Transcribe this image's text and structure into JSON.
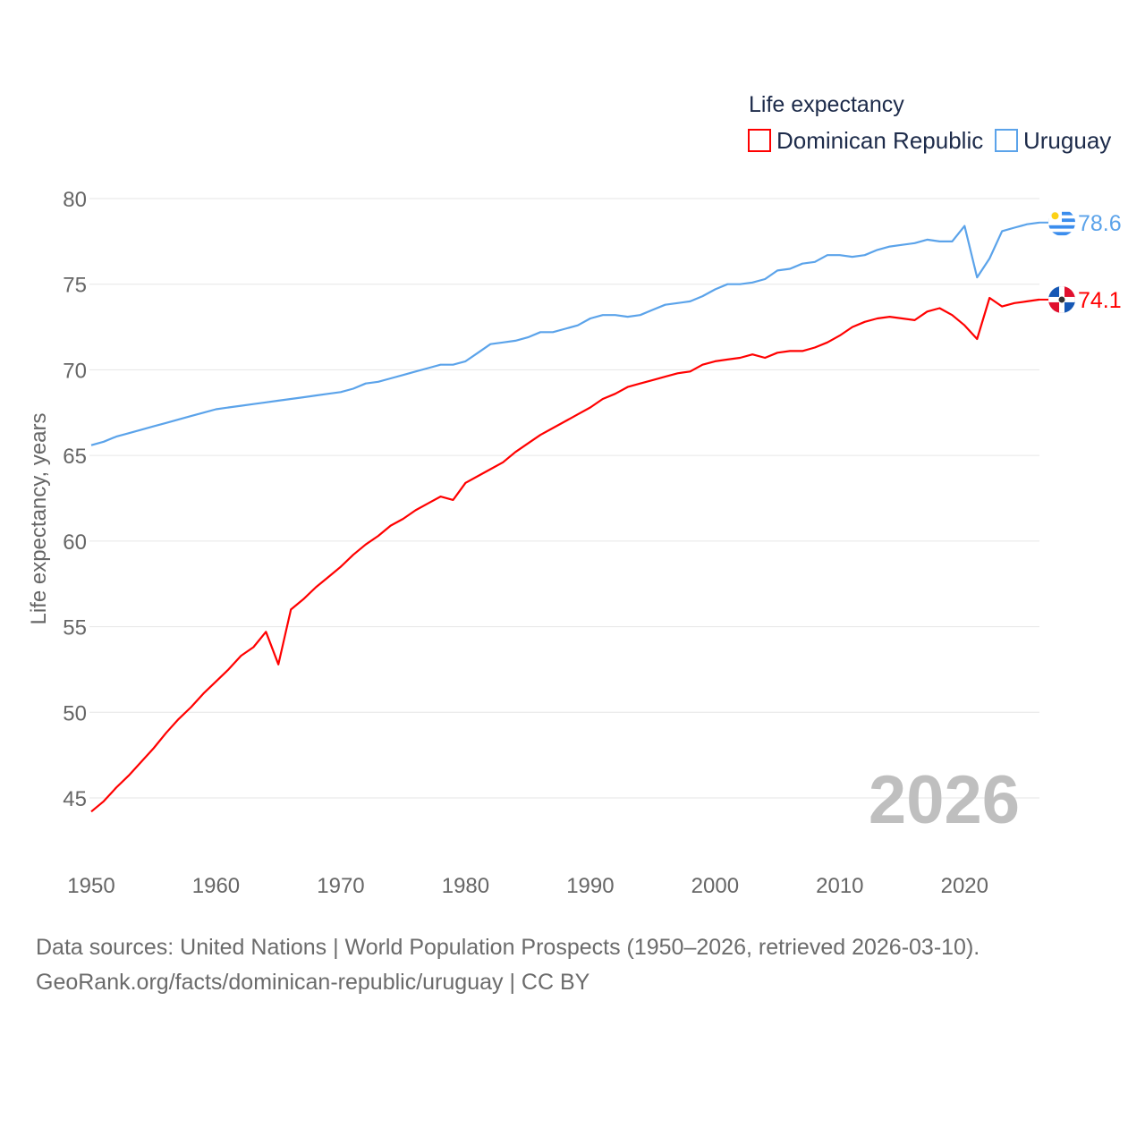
{
  "chart_data": {
    "type": "line",
    "title": "Life expectancy",
    "xlabel": "",
    "ylabel": "Life expectancy, years",
    "xlim": [
      1950,
      2026
    ],
    "ylim": [
      45,
      80
    ],
    "x_ticks": [
      "1950",
      "1960",
      "1970",
      "1980",
      "1990",
      "2000",
      "2010",
      "2020"
    ],
    "y_ticks": [
      "45",
      "50",
      "55",
      "60",
      "65",
      "70",
      "75",
      "80"
    ],
    "grid": true,
    "legend_position": "top-right",
    "year_watermark": "2026",
    "x_start": 1950,
    "series": [
      {
        "name": "Dominican Republic",
        "color": "#ff0000",
        "end_label": "74.1",
        "flag": "dominican-republic-flag",
        "values": [
          44.2,
          44.8,
          45.6,
          46.3,
          47.1,
          47.9,
          48.8,
          49.6,
          50.3,
          51.1,
          51.8,
          52.5,
          53.3,
          53.8,
          54.7,
          52.8,
          56.0,
          56.6,
          57.3,
          57.9,
          58.5,
          59.2,
          59.8,
          60.3,
          60.9,
          61.3,
          61.8,
          62.2,
          62.6,
          62.4,
          63.4,
          63.8,
          64.2,
          64.6,
          65.2,
          65.7,
          66.2,
          66.6,
          67.0,
          67.4,
          67.8,
          68.3,
          68.6,
          69.0,
          69.2,
          69.4,
          69.6,
          69.8,
          69.9,
          70.3,
          70.5,
          70.6,
          70.7,
          70.9,
          70.7,
          71.0,
          71.1,
          71.1,
          71.3,
          71.6,
          72.0,
          72.5,
          72.8,
          73.0,
          73.1,
          73.0,
          72.9,
          73.4,
          73.6,
          73.2,
          72.6,
          71.8,
          74.2,
          73.7,
          73.9,
          74.0,
          74.1
        ]
      },
      {
        "name": "Uruguay",
        "color": "#5ba3ea",
        "end_label": "78.6",
        "flag": "uruguay-flag",
        "values": [
          65.6,
          65.8,
          66.1,
          66.3,
          66.5,
          66.7,
          66.9,
          67.1,
          67.3,
          67.5,
          67.7,
          67.8,
          67.9,
          68.0,
          68.1,
          68.2,
          68.3,
          68.4,
          68.5,
          68.6,
          68.7,
          68.9,
          69.2,
          69.3,
          69.5,
          69.7,
          69.9,
          70.1,
          70.3,
          70.3,
          70.5,
          71.0,
          71.5,
          71.6,
          71.7,
          71.9,
          72.2,
          72.2,
          72.4,
          72.6,
          73.0,
          73.2,
          73.2,
          73.1,
          73.2,
          73.5,
          73.8,
          73.9,
          74.0,
          74.3,
          74.7,
          75.0,
          75.0,
          75.1,
          75.3,
          75.8,
          75.9,
          76.2,
          76.3,
          76.7,
          76.7,
          76.6,
          76.7,
          77.0,
          77.2,
          77.3,
          77.4,
          77.6,
          77.5,
          77.5,
          78.4,
          75.4,
          76.5,
          78.1,
          78.3,
          78.5,
          78.6
        ]
      }
    ]
  },
  "footer": {
    "line1": "Data sources: United Nations | World Population Prospects (1950–2026, retrieved 2026-03-10).",
    "line2": "GeoRank.org/facts/dominican-republic/uruguay | CC BY"
  }
}
